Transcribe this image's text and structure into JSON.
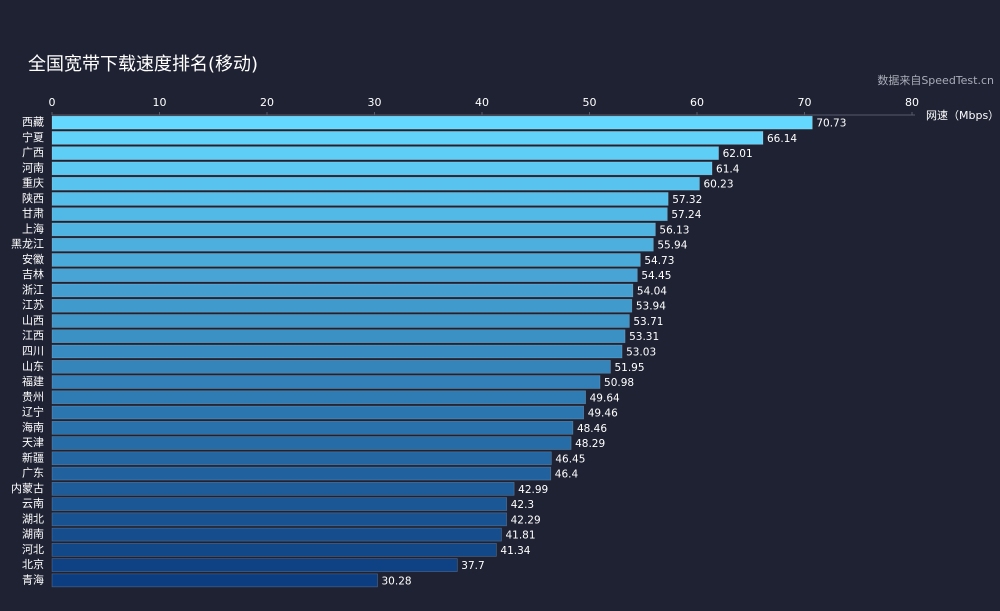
{
  "chart_data": {
    "type": "hbar",
    "title": "全国宽带下载速度排名(移动)",
    "subtitle": "数据来自SpeedTest.cn",
    "x_label": "网速（Mbps）",
    "categories": [
      "西藏",
      "宁夏",
      "广西",
      "河南",
      "重庆",
      "陕西",
      "甘肃",
      "上海",
      "黑龙江",
      "安徽",
      "吉林",
      "浙江",
      "江苏",
      "山西",
      "江西",
      "四川",
      "山东",
      "福建",
      "贵州",
      "辽宁",
      "海南",
      "天津",
      "新疆",
      "广东",
      "内蒙古",
      "云南",
      "湖北",
      "湖南",
      "河北",
      "北京",
      "青海"
    ],
    "values": [
      70.73,
      66.14,
      62.01,
      61.4,
      60.23,
      57.32,
      57.24,
      56.13,
      55.94,
      54.73,
      54.45,
      54.04,
      53.94,
      53.71,
      53.31,
      53.03,
      51.95,
      50.98,
      49.64,
      49.46,
      48.46,
      48.29,
      46.45,
      46.4,
      42.99,
      42.3,
      42.29,
      41.81,
      41.34,
      37.7,
      30.28
    ],
    "gradient": [
      "#64d8ff",
      "#0c3d80"
    ],
    "xlim": [
      0,
      80
    ],
    "xticks": [
      0,
      10,
      20,
      30,
      40,
      50,
      60,
      70,
      80
    ],
    "grid": false
  }
}
